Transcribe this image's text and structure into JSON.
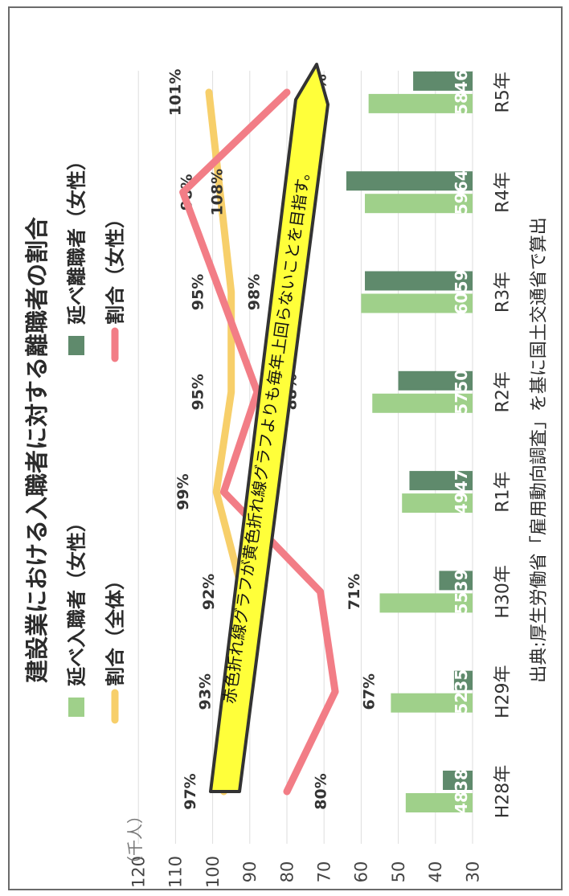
{
  "chart_data": {
    "type": "bar",
    "title": "建設業における入職者に対する離職者の割合",
    "y_unit_label": "（千人）",
    "y_ticks": [
      "30",
      "40",
      "50",
      "60",
      "70",
      "80",
      "90",
      "100",
      "110",
      "120"
    ],
    "ylim": [
      30,
      120
    ],
    "categories": [
      "H28年",
      "H29年",
      "H30年",
      "R1年",
      "R2年",
      "R3年",
      "R4年",
      "R5年"
    ],
    "series": [
      {
        "name": "延べ入職者（女性）",
        "kind": "bar",
        "color": "#9fd08a",
        "values": [
          48,
          52,
          55,
          49,
          57,
          60,
          59,
          58
        ]
      },
      {
        "name": "延べ離職者（女性）",
        "kind": "bar",
        "color": "#5f8a6c",
        "values": [
          38,
          35,
          39,
          47,
          50,
          59,
          64,
          46
        ]
      },
      {
        "name": "割合（全体）",
        "kind": "line",
        "color": "#f7cf6a",
        "values": [
          97,
          93,
          92,
          99,
          95,
          95,
          98,
          101
        ],
        "labels": [
          "97%",
          "93%",
          "92%",
          "99%",
          "95%",
          "95%",
          "98%",
          "101%"
        ]
      },
      {
        "name": "割合（女性）",
        "kind": "line",
        "color": "#f27d86",
        "values": [
          80,
          67,
          71,
          97,
          88,
          98,
          108,
          80
        ],
        "labels": [
          "80%",
          "67%",
          "71%",
          "97%",
          "88%",
          "98%",
          "108%",
          "80%"
        ]
      }
    ],
    "grid": true,
    "legend_position": "top",
    "annotation": "赤色折れ線グラフが黄色折れ線グラフよりも毎年上回らないことを目指す。",
    "source": "出典:厚生労働省「雇用動向調査」を基に国土交通省で算出"
  }
}
